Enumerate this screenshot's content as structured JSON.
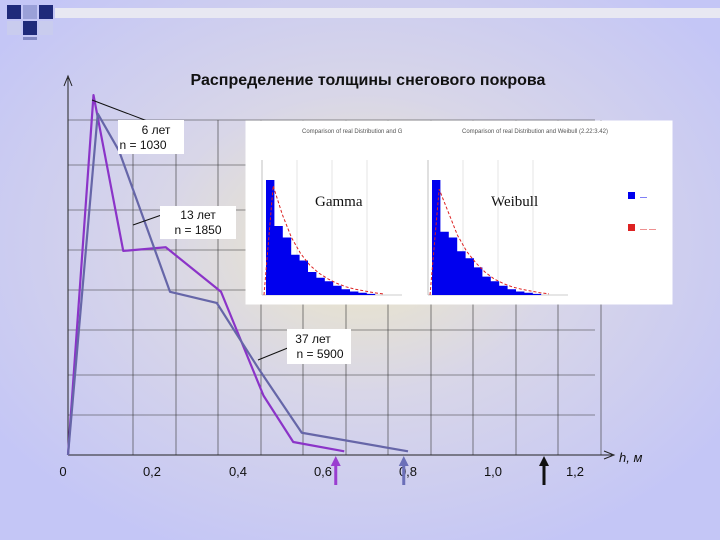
{
  "slide": {
    "background_color": "#c7c9f7",
    "bullet_squares_color": "#1f2a7a"
  },
  "chart_data": {
    "type": "line",
    "title": "Распределение толщины снегового покрова",
    "xlabel": "h, м",
    "ylabel": "",
    "x_tick_labels": [
      "0",
      "0,2",
      "0,4",
      "0,6",
      "0,8",
      "1,0",
      "1,2"
    ],
    "xlim": [
      0,
      1.35
    ],
    "ylim": [
      0,
      1
    ],
    "grid": true,
    "series": [
      {
        "label_lines": [
          "6 лет",
          "n = 1030"
        ],
        "color": "#8b34c8",
        "points": [
          [
            0,
            0.0
          ],
          [
            0.06,
            0.97
          ],
          [
            0.13,
            0.55
          ],
          [
            0.23,
            0.56
          ],
          [
            0.36,
            0.44
          ],
          [
            0.46,
            0.16
          ],
          [
            0.53,
            0.035
          ],
          [
            0.65,
            0.01
          ]
        ]
      },
      {
        "label_lines": [
          "13 лет",
          "n = 1850"
        ],
        "color": "#6666a8",
        "points": [
          [
            0,
            0.0
          ],
          [
            0.07,
            0.92
          ],
          [
            0.12,
            0.82
          ],
          [
            0.24,
            0.44
          ],
          [
            0.35,
            0.41
          ],
          [
            0.45,
            0.23
          ],
          [
            0.55,
            0.06
          ],
          [
            0.8,
            0.01
          ]
        ]
      }
    ],
    "annotations": [
      {
        "id": "label_6",
        "text_lines": [
          "6 лет",
          "n = 1030"
        ],
        "points_to_series": 0
      },
      {
        "id": "label_13",
        "text_lines": [
          "13 лет",
          "n = 1850"
        ],
        "points_to_series": 1
      },
      {
        "id": "label_37",
        "text_lines": [
          "37 лет",
          "n = 5900"
        ],
        "points_to_series": 1
      }
    ],
    "markers": [
      {
        "x": 0.63,
        "color": "#9a3ed0"
      },
      {
        "x": 0.79,
        "color": "#6b6fb8"
      },
      {
        "x": 1.12,
        "color": "#111111"
      }
    ],
    "inset": {
      "panels": [
        {
          "name": "Gamma",
          "header": "Comparison of real Distribution and G",
          "fill_color": "#0000ee",
          "fit_color": "#dd2222",
          "histogram": [
            1.0,
            0.6,
            0.5,
            0.35,
            0.3,
            0.2,
            0.15,
            0.12,
            0.08,
            0.05,
            0.03,
            0.02,
            0.01
          ],
          "fit": [
            0.0,
            0.95,
            0.7,
            0.5,
            0.36,
            0.26,
            0.19,
            0.14,
            0.1,
            0.07,
            0.05,
            0.035,
            0.02,
            0.01
          ]
        },
        {
          "name": "Weibull",
          "header": "Comparison of real Distribution and Weibull (2.22:3.42)",
          "fill_color": "#0000ee",
          "fit_color": "#dd2222",
          "histogram": [
            1.0,
            0.55,
            0.5,
            0.38,
            0.32,
            0.24,
            0.16,
            0.12,
            0.08,
            0.05,
            0.03,
            0.02,
            0.01
          ],
          "fit": [
            0.0,
            0.92,
            0.72,
            0.52,
            0.38,
            0.28,
            0.2,
            0.14,
            0.1,
            0.07,
            0.05,
            0.035,
            0.02,
            0.01
          ]
        }
      ],
      "legend": [
        {
          "color": "#0000ee",
          "text": "—"
        },
        {
          "color": "#dd2222",
          "text": "— —"
        }
      ]
    }
  }
}
